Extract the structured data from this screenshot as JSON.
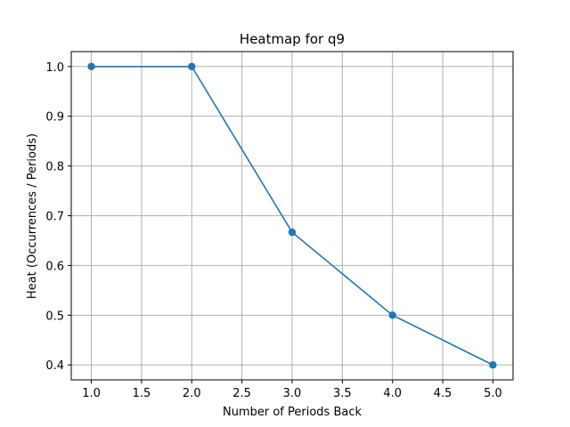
{
  "chart_data": {
    "type": "line",
    "title": "Heatmap for q9",
    "xlabel": "Number of Periods Back",
    "ylabel": "Heat (Occurrences / Periods)",
    "xlim": [
      0.8,
      5.2
    ],
    "ylim": [
      0.37,
      1.03
    ],
    "xticks": [
      "1.0",
      "1.5",
      "2.0",
      "2.5",
      "3.0",
      "3.5",
      "4.0",
      "4.5",
      "5.0"
    ],
    "yticks": [
      "0.4",
      "0.5",
      "0.6",
      "0.7",
      "0.8",
      "0.9",
      "1.0"
    ],
    "grid": true,
    "legend": "none",
    "series": [
      {
        "color": "#1f77b4",
        "marker": "circle",
        "x": [
          1,
          2,
          3,
          4,
          5
        ],
        "y": [
          1.0,
          1.0,
          0.6667,
          0.5,
          0.4
        ]
      }
    ]
  }
}
